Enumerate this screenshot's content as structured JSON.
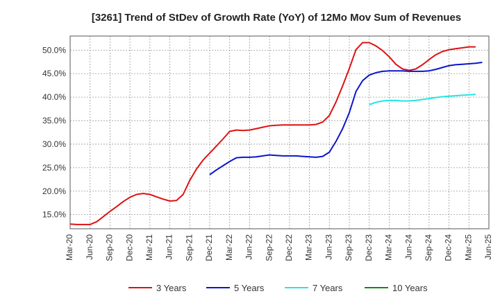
{
  "chart_data": {
    "type": "line",
    "title": "[3261]  Trend of StDev of Growth Rate (YoY) of 12Mo Mov Sum of Revenues",
    "xlabel": "",
    "ylabel": "",
    "ylim": [
      0.12,
      0.53
    ],
    "yticks": [
      0.15,
      0.2,
      0.25,
      0.3,
      0.35,
      0.4,
      0.45,
      0.5
    ],
    "ytick_labels": [
      "15.0%",
      "20.0%",
      "25.0%",
      "30.0%",
      "35.0%",
      "40.0%",
      "45.0%",
      "50.0%"
    ],
    "x_labels": [
      "Mar-20",
      "Jun-20",
      "Sep-20",
      "Dec-20",
      "Mar-21",
      "Jun-21",
      "Sep-21",
      "Dec-21",
      "Mar-22",
      "Jun-22",
      "Sep-22",
      "Dec-22",
      "Mar-23",
      "Jun-23",
      "Sep-23",
      "Dec-23",
      "Mar-24",
      "Jun-24",
      "Sep-24",
      "Dec-24",
      "Mar-25",
      "Jun-25"
    ],
    "x_months_total": 63,
    "grid": true,
    "legend_position": "bottom",
    "series": [
      {
        "name": "3 Years",
        "color": "#dd1111",
        "start_month": 0,
        "values": [
          0.13,
          0.129,
          0.129,
          0.129,
          0.135,
          0.146,
          0.157,
          0.167,
          0.178,
          0.187,
          0.193,
          0.195,
          0.193,
          0.188,
          0.183,
          0.179,
          0.18,
          0.193,
          0.223,
          0.247,
          0.266,
          0.281,
          0.296,
          0.311,
          0.327,
          0.33,
          0.329,
          0.33,
          0.333,
          0.336,
          0.339,
          0.34,
          0.341,
          0.341,
          0.341,
          0.341,
          0.341,
          0.342,
          0.347,
          0.361,
          0.39,
          0.424,
          0.461,
          0.501,
          0.516,
          0.516,
          0.509,
          0.499,
          0.486,
          0.47,
          0.46,
          0.457,
          0.46,
          0.469,
          0.48,
          0.49,
          0.497,
          0.501,
          0.503,
          0.505,
          0.507,
          0.507
        ]
      },
      {
        "name": "5 Years",
        "color": "#0a14cc",
        "start_month": 21,
        "values": [
          0.235,
          0.245,
          0.254,
          0.263,
          0.271,
          0.272,
          0.272,
          0.273,
          0.275,
          0.277,
          0.276,
          0.275,
          0.275,
          0.275,
          0.274,
          0.273,
          0.272,
          0.274,
          0.283,
          0.306,
          0.333,
          0.367,
          0.412,
          0.435,
          0.447,
          0.452,
          0.455,
          0.456,
          0.456,
          0.456,
          0.455,
          0.455,
          0.455,
          0.456,
          0.459,
          0.463,
          0.467,
          0.469,
          0.47,
          0.471,
          0.472,
          0.474
        ]
      },
      {
        "name": "7 Years",
        "color": "#22e5e5",
        "start_month": 45,
        "values": [
          0.384,
          0.389,
          0.392,
          0.393,
          0.393,
          0.392,
          0.392,
          0.393,
          0.395,
          0.397,
          0.399,
          0.401,
          0.402,
          0.403,
          0.404,
          0.405,
          0.406
        ]
      },
      {
        "name": "10 Years",
        "color": "#118811",
        "start_month": 63,
        "values": []
      }
    ]
  }
}
